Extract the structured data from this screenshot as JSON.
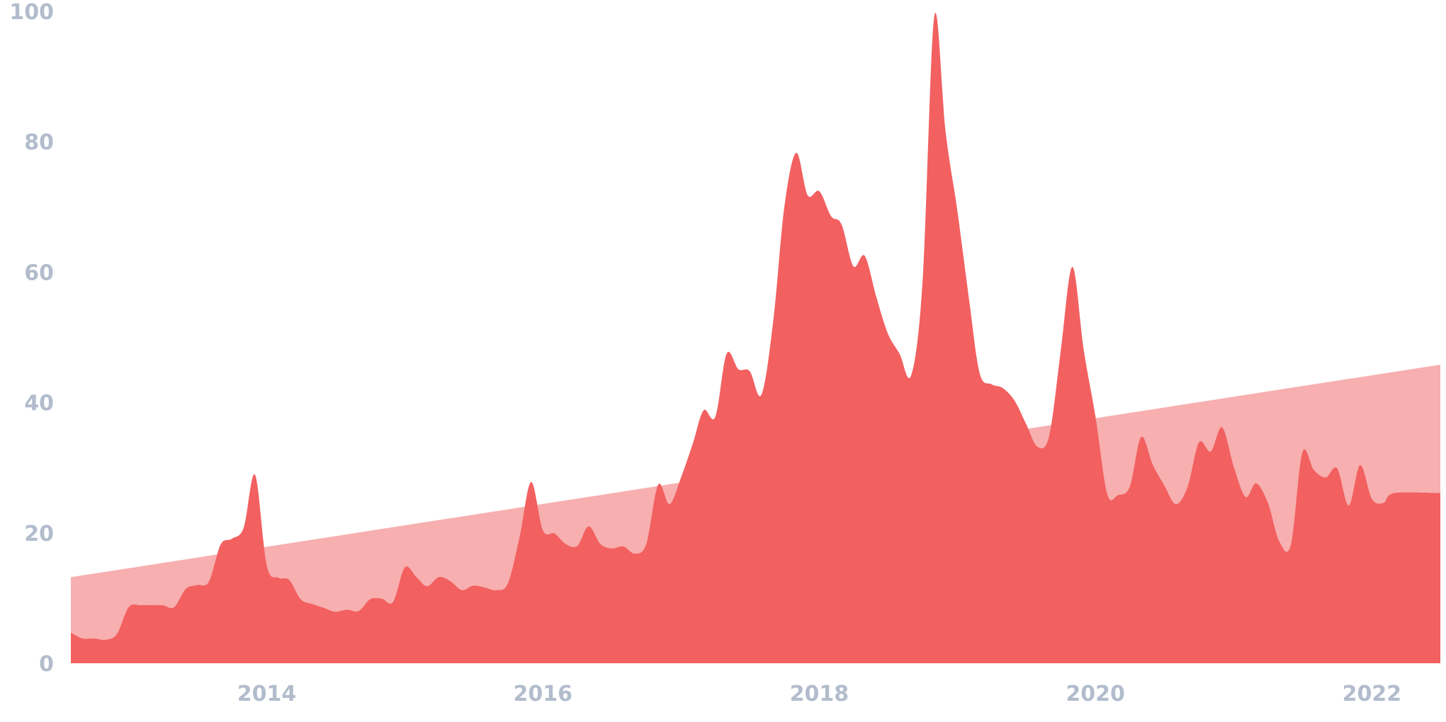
{
  "chart_data": {
    "type": "area",
    "x_range": [
      "2012-08-01",
      "2022-07-01"
    ],
    "ylim": [
      0,
      100
    ],
    "yticks": [
      0,
      20,
      40,
      60,
      80,
      100
    ],
    "ytick_labels": [
      "0",
      "20",
      "40",
      "60",
      "80",
      "100"
    ],
    "xticks": [
      "2014-01-01",
      "2016-01-01",
      "2018-01-01",
      "2020-01-01",
      "2022-01-01"
    ],
    "xtick_labels": [
      "2014",
      "2016",
      "2018",
      "2020",
      "2022"
    ],
    "grid": false,
    "legend": "none",
    "series": [
      {
        "role": "trend",
        "color": "#f7afaf",
        "points": [
          [
            "2012-08-01",
            13.2
          ],
          [
            "2022-07-01",
            45.8
          ]
        ]
      },
      {
        "role": "interest",
        "color": "#f26060",
        "points": [
          [
            "2012-08-01",
            4.7
          ],
          [
            "2012-09-01",
            3.8
          ],
          [
            "2012-10-01",
            3.8
          ],
          [
            "2012-11-01",
            3.6
          ],
          [
            "2012-12-01",
            4.5
          ],
          [
            "2013-01-01",
            8.6
          ],
          [
            "2013-02-01",
            8.9
          ],
          [
            "2013-03-01",
            8.9
          ],
          [
            "2013-04-01",
            8.9
          ],
          [
            "2013-05-01",
            8.6
          ],
          [
            "2013-06-01",
            11.4
          ],
          [
            "2013-07-01",
            12.0
          ],
          [
            "2013-08-01",
            12.5
          ],
          [
            "2013-09-01",
            18.2
          ],
          [
            "2013-10-01",
            19.1
          ],
          [
            "2013-11-01",
            20.8
          ],
          [
            "2013-12-01",
            28.9
          ],
          [
            "2014-01-01",
            15.0
          ],
          [
            "2014-02-01",
            13.1
          ],
          [
            "2014-03-01",
            12.8
          ],
          [
            "2014-04-01",
            9.8
          ],
          [
            "2014-05-01",
            9.1
          ],
          [
            "2014-06-01",
            8.5
          ],
          [
            "2014-07-01",
            7.9
          ],
          [
            "2014-08-01",
            8.2
          ],
          [
            "2014-09-01",
            8.0
          ],
          [
            "2014-10-01",
            9.8
          ],
          [
            "2014-11-01",
            9.9
          ],
          [
            "2014-12-01",
            9.4
          ],
          [
            "2015-01-01",
            14.7
          ],
          [
            "2015-02-01",
            13.2
          ],
          [
            "2015-03-01",
            11.8
          ],
          [
            "2015-04-01",
            13.2
          ],
          [
            "2015-05-01",
            12.6
          ],
          [
            "2015-06-01",
            11.2
          ],
          [
            "2015-07-01",
            11.9
          ],
          [
            "2015-08-01",
            11.6
          ],
          [
            "2015-09-01",
            11.2
          ],
          [
            "2015-10-01",
            12.3
          ],
          [
            "2015-11-01",
            19.5
          ],
          [
            "2015-12-01",
            27.8
          ],
          [
            "2016-01-01",
            20.4
          ],
          [
            "2016-02-01",
            19.9
          ],
          [
            "2016-03-01",
            18.3
          ],
          [
            "2016-04-01",
            18.0
          ],
          [
            "2016-05-01",
            21.0
          ],
          [
            "2016-06-01",
            18.3
          ],
          [
            "2016-07-01",
            17.6
          ],
          [
            "2016-08-01",
            17.9
          ],
          [
            "2016-09-01",
            16.8
          ],
          [
            "2016-10-01",
            18.4
          ],
          [
            "2016-11-01",
            27.4
          ],
          [
            "2016-12-01",
            24.4
          ],
          [
            "2017-01-01",
            28.6
          ],
          [
            "2017-02-01",
            33.8
          ],
          [
            "2017-03-01",
            38.8
          ],
          [
            "2017-04-01",
            37.8
          ],
          [
            "2017-05-01",
            47.5
          ],
          [
            "2017-06-01",
            45.1
          ],
          [
            "2017-07-01",
            44.8
          ],
          [
            "2017-08-01",
            41.2
          ],
          [
            "2017-09-01",
            52.4
          ],
          [
            "2017-10-01",
            70.2
          ],
          [
            "2017-11-01",
            78.3
          ],
          [
            "2017-12-01",
            71.8
          ],
          [
            "2018-01-01",
            72.4
          ],
          [
            "2018-02-01",
            68.6
          ],
          [
            "2018-03-01",
            67.3
          ],
          [
            "2018-04-01",
            60.9
          ],
          [
            "2018-05-01",
            62.5
          ],
          [
            "2018-06-01",
            56.1
          ],
          [
            "2018-07-01",
            50.6
          ],
          [
            "2018-08-01",
            47.5
          ],
          [
            "2018-09-01",
            44.2
          ],
          [
            "2018-10-01",
            58.6
          ],
          [
            "2018-11-01",
            99.2
          ],
          [
            "2018-12-01",
            81.5
          ],
          [
            "2019-01-01",
            69.4
          ],
          [
            "2019-02-01",
            55.8
          ],
          [
            "2019-03-01",
            44.5
          ],
          [
            "2019-04-01",
            42.8
          ],
          [
            "2019-05-01",
            42.2
          ],
          [
            "2019-06-01",
            40.3
          ],
          [
            "2019-07-01",
            36.8
          ],
          [
            "2019-08-01",
            33.2
          ],
          [
            "2019-09-01",
            34.9
          ],
          [
            "2019-10-01",
            47.7
          ],
          [
            "2019-11-01",
            60.8
          ],
          [
            "2019-12-01",
            48.1
          ],
          [
            "2020-01-01",
            37.9
          ],
          [
            "2020-02-01",
            26.0
          ],
          [
            "2020-03-01",
            25.8
          ],
          [
            "2020-04-01",
            27.1
          ],
          [
            "2020-05-01",
            34.7
          ],
          [
            "2020-06-01",
            30.4
          ],
          [
            "2020-07-01",
            27.3
          ],
          [
            "2020-08-01",
            24.4
          ],
          [
            "2020-09-01",
            27.1
          ],
          [
            "2020-10-01",
            33.9
          ],
          [
            "2020-11-01",
            32.5
          ],
          [
            "2020-12-01",
            36.2
          ],
          [
            "2021-01-01",
            30.1
          ],
          [
            "2021-02-01",
            25.5
          ],
          [
            "2021-03-01",
            27.6
          ],
          [
            "2021-04-01",
            24.6
          ],
          [
            "2021-05-01",
            18.7
          ],
          [
            "2021-06-01",
            18.2
          ],
          [
            "2021-07-01",
            32.3
          ],
          [
            "2021-08-01",
            29.6
          ],
          [
            "2021-09-01",
            28.5
          ],
          [
            "2021-10-01",
            29.9
          ],
          [
            "2021-11-01",
            24.2
          ],
          [
            "2021-12-01",
            30.4
          ],
          [
            "2022-01-01",
            25.2
          ],
          [
            "2022-02-01",
            24.6
          ],
          [
            "2022-03-01",
            26.1
          ]
        ]
      }
    ]
  }
}
